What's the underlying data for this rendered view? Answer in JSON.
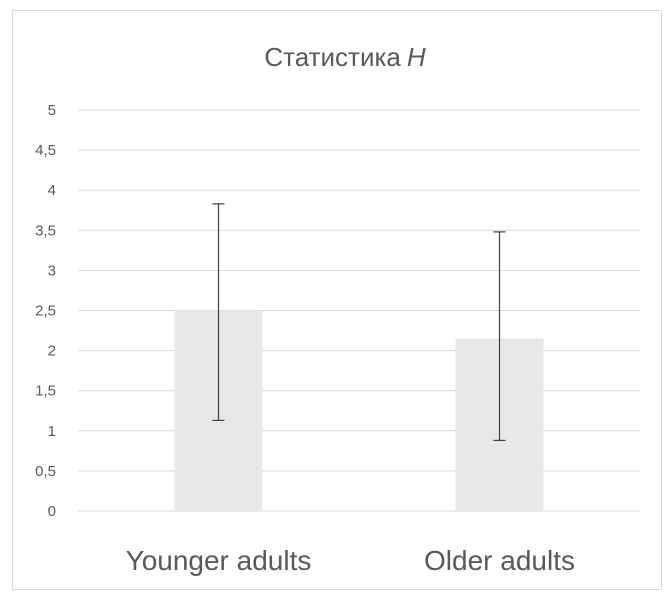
{
  "chart_data": {
    "type": "bar",
    "title": "Статистика",
    "title_italic": "H",
    "categories": [
      "Younger adults",
      "Older adults"
    ],
    "values": [
      2.5,
      2.15
    ],
    "error_bars": [
      {
        "low": 1.13,
        "high": 3.83
      },
      {
        "low": 0.88,
        "high": 3.48
      }
    ],
    "y_ticks": [
      "0",
      "0,5",
      "1",
      "1,5",
      "2",
      "2,5",
      "3",
      "3,5",
      "4",
      "4,5",
      "5"
    ],
    "ylim": [
      0,
      5
    ],
    "grid": true,
    "bar_color": "#e8e8e8",
    "grid_color": "#d9d9d9",
    "error_bar_color": "#404040"
  }
}
